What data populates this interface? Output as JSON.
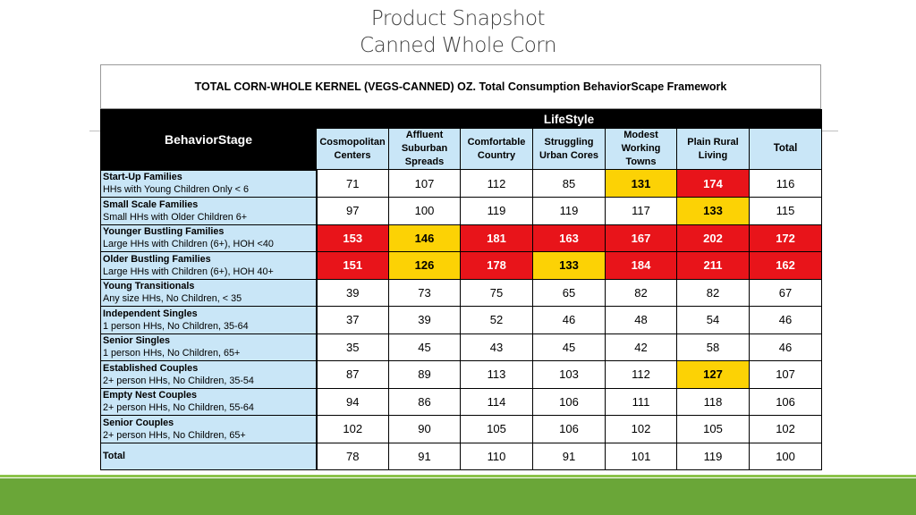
{
  "slide": {
    "title_line1": "Product Snapshot",
    "title_line2": "Canned Whole Corn"
  },
  "table": {
    "header": "TOTAL CORN-WHOLE KERNEL (VEGS-CANNED) OZ.  Total Consumption BehaviorScape Framework",
    "stage_header": "BehaviorStage",
    "lifestyle_header": "LifeStyle",
    "columns": [
      "Cosmopolitan Centers",
      "Affluent Suburban Spreads",
      "Comfortable Country",
      "Struggling Urban Cores",
      "Modest Working Towns",
      "Plain Rural Living",
      "Total"
    ],
    "rows": [
      {
        "name": "Start-Up Families",
        "desc": "HHs with Young Children Only < 6",
        "values": [
          "71",
          "107",
          "112",
          "85",
          "131",
          "174",
          "116"
        ],
        "colors": [
          "",
          "",
          "",
          "",
          "yellow",
          "red",
          ""
        ]
      },
      {
        "name": "Small Scale Families",
        "desc": "Small HHs with Older Children 6+",
        "values": [
          "97",
          "100",
          "119",
          "119",
          "117",
          "133",
          "115"
        ],
        "colors": [
          "",
          "",
          "",
          "",
          "",
          "yellow",
          ""
        ]
      },
      {
        "name": "Younger Bustling Families",
        "desc": "Large HHs with Children (6+), HOH <40",
        "values": [
          "153",
          "146",
          "181",
          "163",
          "167",
          "202",
          "172"
        ],
        "colors": [
          "red",
          "yellow",
          "red",
          "red",
          "red",
          "red",
          "red"
        ]
      },
      {
        "name": "Older Bustling Families",
        "desc": "Large HHs with Children (6+), HOH 40+",
        "values": [
          "151",
          "126",
          "178",
          "133",
          "184",
          "211",
          "162"
        ],
        "colors": [
          "red",
          "yellow",
          "red",
          "yellow",
          "red",
          "red",
          "red"
        ]
      },
      {
        "name": "Young Transitionals",
        "desc": "Any size HHs, No Children, < 35",
        "values": [
          "39",
          "73",
          "75",
          "65",
          "82",
          "82",
          "67"
        ],
        "colors": [
          "",
          "",
          "",
          "",
          "",
          "",
          ""
        ]
      },
      {
        "name": "Independent Singles",
        "desc": "1 person HHs, No Children, 35-64",
        "values": [
          "37",
          "39",
          "52",
          "46",
          "48",
          "54",
          "46"
        ],
        "colors": [
          "",
          "",
          "",
          "",
          "",
          "",
          ""
        ]
      },
      {
        "name": "Senior Singles",
        "desc": "1 person HHs, No Children, 65+",
        "values": [
          "35",
          "45",
          "43",
          "45",
          "42",
          "58",
          "46"
        ],
        "colors": [
          "",
          "",
          "",
          "",
          "",
          "",
          ""
        ]
      },
      {
        "name": "Established Couples",
        "desc": "2+ person HHs, No Children, 35-54",
        "values": [
          "87",
          "89",
          "113",
          "103",
          "112",
          "127",
          "107"
        ],
        "colors": [
          "",
          "",
          "",
          "",
          "",
          "yellow",
          ""
        ]
      },
      {
        "name": "Empty Nest Couples",
        "desc": "2+ person HHs, No Children, 55-64",
        "values": [
          "94",
          "86",
          "114",
          "106",
          "111",
          "118",
          "106"
        ],
        "colors": [
          "",
          "",
          "",
          "",
          "",
          "",
          ""
        ]
      },
      {
        "name": "Senior Couples",
        "desc": "2+ person HHs, No Children, 65+",
        "values": [
          "102",
          "90",
          "105",
          "106",
          "102",
          "105",
          "102"
        ],
        "colors": [
          "",
          "",
          "",
          "",
          "",
          "",
          ""
        ]
      }
    ],
    "total_row": {
      "name": "Total",
      "values": [
        "78",
        "91",
        "110",
        "91",
        "101",
        "119",
        "100"
      ]
    }
  },
  "colors": {
    "red_highlight": "#e8141a",
    "yellow_highlight": "#fcd205",
    "header_blue": "#c9e6f7",
    "footer_green": "#6aa638"
  }
}
